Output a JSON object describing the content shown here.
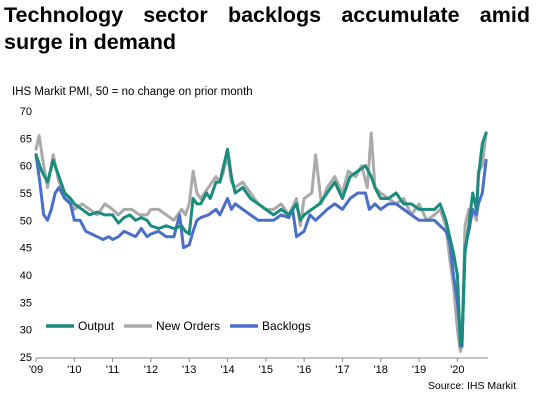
{
  "title_line1": "Technology sector backlogs accumulate amid",
  "title_line2": "surge in demand",
  "subtitle": "IHS Markit PMI, 50 = no change on prior month",
  "source": "Source: IHS Markit",
  "chart_data": {
    "type": "line",
    "ylim": [
      25,
      70
    ],
    "yticks": [
      25,
      30,
      35,
      40,
      45,
      50,
      55,
      60,
      65,
      70
    ],
    "xlim": [
      2009.0,
      2020.8
    ],
    "xticks": [
      {
        "label": "'09",
        "value": 2009
      },
      {
        "label": "'10",
        "value": 2010
      },
      {
        "label": "'11",
        "value": 2011
      },
      {
        "label": "'12",
        "value": 2012
      },
      {
        "label": "'13",
        "value": 2013
      },
      {
        "label": "'14",
        "value": 2014
      },
      {
        "label": "'15",
        "value": 2015
      },
      {
        "label": "'16",
        "value": 2016
      },
      {
        "label": "'17",
        "value": 2017
      },
      {
        "label": "'18",
        "value": 2018
      },
      {
        "label": "'19",
        "value": 2019
      },
      {
        "label": "'20",
        "value": 2020
      }
    ],
    "grid": false,
    "legend_position": "bottom-left",
    "series": [
      {
        "name": "Output",
        "color": "#1a8c7e",
        "points": [
          [
            2009.0,
            62
          ],
          [
            2009.15,
            59
          ],
          [
            2009.3,
            57
          ],
          [
            2009.45,
            61
          ],
          [
            2009.6,
            58
          ],
          [
            2009.75,
            55
          ],
          [
            2009.9,
            54
          ],
          [
            2010.0,
            53
          ],
          [
            2010.2,
            52
          ],
          [
            2010.4,
            51
          ],
          [
            2010.6,
            51.5
          ],
          [
            2010.8,
            51
          ],
          [
            2011.0,
            51
          ],
          [
            2011.15,
            49.5
          ],
          [
            2011.3,
            50.5
          ],
          [
            2011.45,
            51
          ],
          [
            2011.6,
            50
          ],
          [
            2011.75,
            50.5
          ],
          [
            2011.9,
            50
          ],
          [
            2012.0,
            49
          ],
          [
            2012.2,
            48.5
          ],
          [
            2012.4,
            49
          ],
          [
            2012.6,
            48.5
          ],
          [
            2012.8,
            49
          ],
          [
            2012.9,
            48
          ],
          [
            2013.0,
            47.5
          ],
          [
            2013.1,
            54
          ],
          [
            2013.2,
            53
          ],
          [
            2013.3,
            53
          ],
          [
            2013.45,
            55
          ],
          [
            2013.55,
            54
          ],
          [
            2013.7,
            57
          ],
          [
            2013.8,
            57
          ],
          [
            2013.9,
            60
          ],
          [
            2014.0,
            63
          ],
          [
            2014.1,
            58
          ],
          [
            2014.2,
            55
          ],
          [
            2014.4,
            56
          ],
          [
            2014.6,
            54
          ],
          [
            2014.8,
            53
          ],
          [
            2015.0,
            52
          ],
          [
            2015.2,
            51
          ],
          [
            2015.4,
            52
          ],
          [
            2015.6,
            51
          ],
          [
            2015.8,
            53
          ],
          [
            2015.9,
            50
          ],
          [
            2016.0,
            51
          ],
          [
            2016.2,
            52
          ],
          [
            2016.4,
            53
          ],
          [
            2016.6,
            55
          ],
          [
            2016.8,
            57
          ],
          [
            2017.0,
            54
          ],
          [
            2017.2,
            58
          ],
          [
            2017.4,
            59
          ],
          [
            2017.6,
            60
          ],
          [
            2017.75,
            58
          ],
          [
            2017.85,
            56
          ],
          [
            2018.0,
            54
          ],
          [
            2018.2,
            54
          ],
          [
            2018.4,
            55
          ],
          [
            2018.6,
            53
          ],
          [
            2018.8,
            53
          ],
          [
            2019.0,
            52
          ],
          [
            2019.2,
            52
          ],
          [
            2019.4,
            52
          ],
          [
            2019.55,
            53
          ],
          [
            2019.7,
            50
          ],
          [
            2019.8,
            47
          ],
          [
            2019.9,
            44
          ],
          [
            2020.0,
            40
          ],
          [
            2020.08,
            27
          ],
          [
            2020.12,
            28
          ],
          [
            2020.2,
            44
          ],
          [
            2020.3,
            49
          ],
          [
            2020.4,
            55
          ],
          [
            2020.5,
            52
          ],
          [
            2020.55,
            58
          ],
          [
            2020.65,
            64
          ],
          [
            2020.75,
            66
          ]
        ]
      },
      {
        "name": "New Orders",
        "color": "#aaaaaa",
        "points": [
          [
            2009.0,
            63
          ],
          [
            2009.08,
            65.5
          ],
          [
            2009.2,
            60
          ],
          [
            2009.3,
            56
          ],
          [
            2009.45,
            62
          ],
          [
            2009.6,
            57
          ],
          [
            2009.75,
            55
          ],
          [
            2009.9,
            53
          ],
          [
            2010.0,
            52
          ],
          [
            2010.2,
            53
          ],
          [
            2010.4,
            52
          ],
          [
            2010.6,
            51
          ],
          [
            2010.8,
            53
          ],
          [
            2011.0,
            52
          ],
          [
            2011.15,
            51
          ],
          [
            2011.3,
            52
          ],
          [
            2011.5,
            52
          ],
          [
            2011.7,
            51
          ],
          [
            2011.9,
            51
          ],
          [
            2012.0,
            52
          ],
          [
            2012.2,
            52
          ],
          [
            2012.4,
            51
          ],
          [
            2012.6,
            50
          ],
          [
            2012.8,
            52
          ],
          [
            2012.9,
            51
          ],
          [
            2013.0,
            53
          ],
          [
            2013.1,
            59
          ],
          [
            2013.2,
            55
          ],
          [
            2013.3,
            54
          ],
          [
            2013.5,
            56
          ],
          [
            2013.7,
            58
          ],
          [
            2013.8,
            57
          ],
          [
            2013.9,
            59
          ],
          [
            2014.0,
            62
          ],
          [
            2014.1,
            57
          ],
          [
            2014.2,
            56
          ],
          [
            2014.4,
            57
          ],
          [
            2014.6,
            55
          ],
          [
            2014.8,
            53
          ],
          [
            2015.0,
            52
          ],
          [
            2015.2,
            52
          ],
          [
            2015.4,
            53
          ],
          [
            2015.6,
            51
          ],
          [
            2015.8,
            54
          ],
          [
            2015.9,
            49
          ],
          [
            2016.0,
            54
          ],
          [
            2016.2,
            55
          ],
          [
            2016.3,
            62
          ],
          [
            2016.45,
            53
          ],
          [
            2016.6,
            56
          ],
          [
            2016.8,
            58
          ],
          [
            2017.0,
            55
          ],
          [
            2017.15,
            59
          ],
          [
            2017.35,
            58
          ],
          [
            2017.5,
            60
          ],
          [
            2017.65,
            56
          ],
          [
            2017.75,
            66
          ],
          [
            2017.85,
            56
          ],
          [
            2018.0,
            55
          ],
          [
            2018.2,
            54
          ],
          [
            2018.4,
            53
          ],
          [
            2018.6,
            54
          ],
          [
            2018.8,
            51
          ],
          [
            2019.0,
            53
          ],
          [
            2019.2,
            50
          ],
          [
            2019.4,
            51
          ],
          [
            2019.55,
            52
          ],
          [
            2019.7,
            49
          ],
          [
            2019.8,
            43
          ],
          [
            2019.9,
            38
          ],
          [
            2020.0,
            30
          ],
          [
            2020.08,
            26
          ],
          [
            2020.12,
            27
          ],
          [
            2020.2,
            49
          ],
          [
            2020.3,
            52
          ],
          [
            2020.4,
            52
          ],
          [
            2020.5,
            50
          ],
          [
            2020.55,
            59
          ],
          [
            2020.65,
            60
          ],
          [
            2020.75,
            66
          ]
        ]
      },
      {
        "name": "Backlogs",
        "color": "#4a6fca",
        "points": [
          [
            2009.0,
            62
          ],
          [
            2009.1,
            57
          ],
          [
            2009.2,
            51
          ],
          [
            2009.3,
            50
          ],
          [
            2009.4,
            52
          ],
          [
            2009.5,
            55
          ],
          [
            2009.6,
            56
          ],
          [
            2009.75,
            54
          ],
          [
            2009.9,
            53
          ],
          [
            2010.0,
            50
          ],
          [
            2010.15,
            50
          ],
          [
            2010.3,
            48
          ],
          [
            2010.45,
            47.5
          ],
          [
            2010.6,
            47
          ],
          [
            2010.75,
            46.5
          ],
          [
            2010.9,
            47
          ],
          [
            2011.0,
            46.5
          ],
          [
            2011.15,
            47
          ],
          [
            2011.3,
            48
          ],
          [
            2011.45,
            47.5
          ],
          [
            2011.6,
            47
          ],
          [
            2011.75,
            48.5
          ],
          [
            2011.9,
            47
          ],
          [
            2012.0,
            47.5
          ],
          [
            2012.2,
            48
          ],
          [
            2012.4,
            47
          ],
          [
            2012.6,
            47
          ],
          [
            2012.75,
            51
          ],
          [
            2012.85,
            45
          ],
          [
            2013.0,
            45.5
          ],
          [
            2013.1,
            48
          ],
          [
            2013.2,
            50
          ],
          [
            2013.3,
            50.5
          ],
          [
            2013.5,
            51
          ],
          [
            2013.7,
            52
          ],
          [
            2013.8,
            51
          ],
          [
            2013.9,
            52.5
          ],
          [
            2014.0,
            54
          ],
          [
            2014.1,
            52
          ],
          [
            2014.2,
            53
          ],
          [
            2014.4,
            52
          ],
          [
            2014.6,
            51
          ],
          [
            2014.8,
            50
          ],
          [
            2015.0,
            50
          ],
          [
            2015.2,
            50
          ],
          [
            2015.4,
            51
          ],
          [
            2015.6,
            50.5
          ],
          [
            2015.7,
            52
          ],
          [
            2015.8,
            47
          ],
          [
            2016.0,
            48
          ],
          [
            2016.15,
            51
          ],
          [
            2016.3,
            50
          ],
          [
            2016.45,
            51
          ],
          [
            2016.6,
            52
          ],
          [
            2016.8,
            53
          ],
          [
            2017.0,
            52
          ],
          [
            2017.2,
            54
          ],
          [
            2017.4,
            55
          ],
          [
            2017.6,
            55
          ],
          [
            2017.7,
            52
          ],
          [
            2017.85,
            53
          ],
          [
            2018.0,
            52
          ],
          [
            2018.2,
            53
          ],
          [
            2018.4,
            53
          ],
          [
            2018.6,
            52
          ],
          [
            2018.8,
            51
          ],
          [
            2019.0,
            50
          ],
          [
            2019.2,
            50
          ],
          [
            2019.4,
            50
          ],
          [
            2019.55,
            49
          ],
          [
            2019.7,
            48
          ],
          [
            2019.8,
            46
          ],
          [
            2019.9,
            40
          ],
          [
            2020.0,
            35
          ],
          [
            2020.08,
            29
          ],
          [
            2020.12,
            27
          ],
          [
            2020.2,
            45
          ],
          [
            2020.3,
            48
          ],
          [
            2020.4,
            52
          ],
          [
            2020.5,
            51
          ],
          [
            2020.55,
            53
          ],
          [
            2020.65,
            55
          ],
          [
            2020.75,
            61
          ]
        ]
      }
    ]
  }
}
